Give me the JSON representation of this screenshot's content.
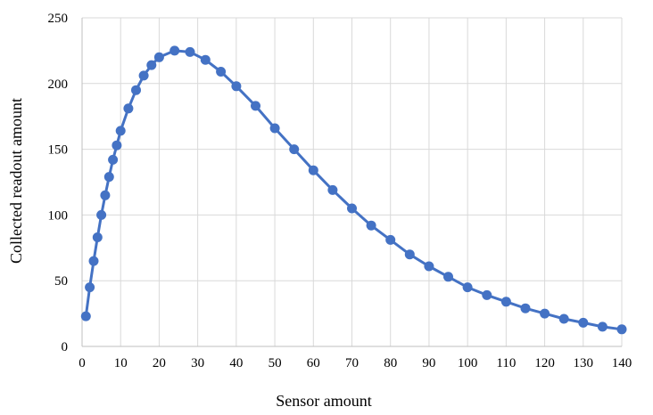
{
  "chart_data": {
    "type": "line",
    "title": "",
    "xlabel": "Sensor amount",
    "ylabel": "Collected readout amount",
    "xlim": [
      0,
      140
    ],
    "ylim": [
      0,
      250
    ],
    "x_ticks": [
      0,
      10,
      20,
      30,
      40,
      50,
      60,
      70,
      80,
      90,
      100,
      110,
      120,
      130,
      140
    ],
    "y_ticks": [
      0,
      50,
      100,
      150,
      200,
      250
    ],
    "grid": true,
    "legend": "none",
    "series": [
      {
        "color": "#4472c4",
        "markers": true,
        "x": [
          1,
          2,
          3,
          4,
          5,
          6,
          7,
          8,
          9,
          10,
          12,
          14,
          16,
          18,
          20,
          24,
          28,
          32,
          36,
          40,
          45,
          50,
          55,
          60,
          65,
          70,
          75,
          80,
          85,
          90,
          95,
          100,
          105,
          110,
          115,
          120,
          125,
          130,
          135,
          140
        ],
        "y": [
          23,
          45,
          65,
          83,
          100,
          115,
          129,
          142,
          153,
          164,
          181,
          195,
          206,
          214,
          220,
          225,
          224,
          218,
          209,
          198,
          183,
          166,
          150,
          134,
          119,
          105,
          92,
          81,
          70,
          61,
          53,
          45,
          39,
          34,
          29,
          25,
          21,
          18,
          15,
          13
        ]
      }
    ]
  }
}
